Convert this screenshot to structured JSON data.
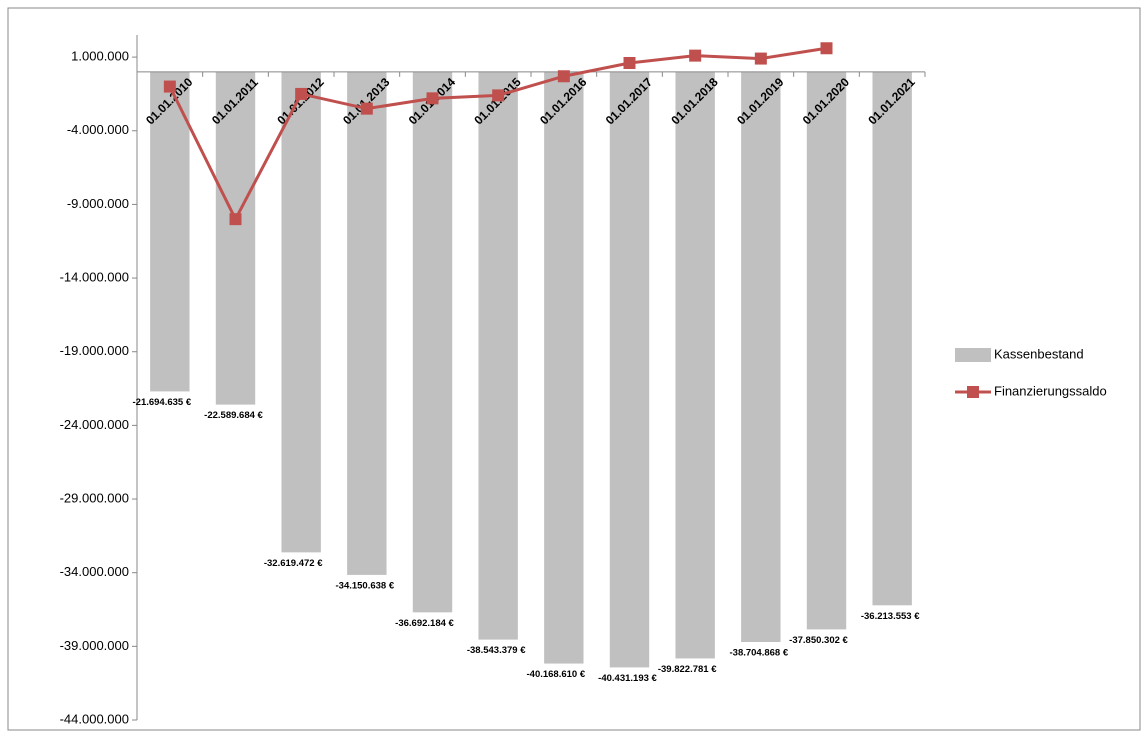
{
  "chart_data": {
    "type": "bar_line",
    "categories": [
      "01.01.2010",
      "01.01.2011",
      "01.01.2012",
      "01.01.2013",
      "01.01.2014",
      "01.01.2015",
      "01.01.2016",
      "01.01.2017",
      "01.01.2018",
      "01.01.2019",
      "01.01.2020",
      "01.01.2021"
    ],
    "series": [
      {
        "name": "Kassenbestand",
        "type": "bar",
        "color": "#c0c0c0",
        "values": [
          -21694635,
          -22589684,
          -32619472,
          -34150638,
          -36692184,
          -38543379,
          -40168610,
          -40431193,
          -39822781,
          -38704868,
          -37850302,
          -36213553
        ],
        "value_labels": [
          "-21.694.635 €",
          "-22.589.684 €",
          "-32.619.472 €",
          "-34.150.638 €",
          "-36.692.184 €",
          "-38.543.379 €",
          "-40.168.610 €",
          "-40.431.193 €",
          "-39.822.781 €",
          "-38.704.868 €",
          "-37.850.302 €",
          "-36.213.553 €"
        ]
      },
      {
        "name": "Finanzierungssaldo",
        "type": "line",
        "color": "#c0504d",
        "values": [
          -1000000,
          -10000000,
          -1500000,
          -2500000,
          -1800000,
          -1600000,
          -300000,
          600000,
          1100000,
          900000,
          1600000,
          null
        ]
      }
    ],
    "ylim": [
      -44000000,
      2500000
    ],
    "yticks": [
      {
        "value": 1000000,
        "label": "1.000.000"
      },
      {
        "value": -4000000,
        "label": "-4.000.000"
      },
      {
        "value": -9000000,
        "label": "-9.000.000"
      },
      {
        "value": -14000000,
        "label": "-14.000.000"
      },
      {
        "value": -19000000,
        "label": "-19.000.000"
      },
      {
        "value": -24000000,
        "label": "-24.000.000"
      },
      {
        "value": -29000000,
        "label": "-29.000.000"
      },
      {
        "value": -34000000,
        "label": "-34.000.000"
      },
      {
        "value": -39000000,
        "label": "-39.000.000"
      },
      {
        "value": -44000000,
        "label": "-44.000.000"
      }
    ],
    "grid": false,
    "legend": "right"
  }
}
